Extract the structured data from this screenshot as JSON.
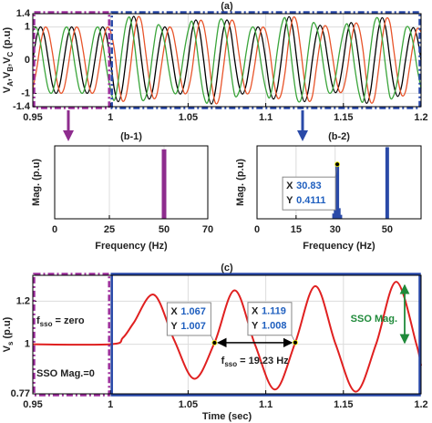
{
  "chart_data": [
    {
      "type": "line",
      "title": "(a)",
      "ylabel": [
        "V",
        "A",
        ",V",
        "B",
        ",V",
        "C",
        " (p.u)"
      ],
      "x": [
        0.95,
        0.9525,
        0.955,
        0.9575,
        0.96,
        0.9625,
        0.965,
        0.9675,
        0.97,
        0.9725,
        0.975,
        0.9775,
        0.98,
        0.9825,
        0.985,
        0.9875,
        0.99,
        0.9925,
        0.995,
        0.9975,
        1,
        1.0025,
        1.005,
        1.0075,
        1.01,
        1.0125,
        1.015,
        1.0175,
        1.02,
        1.0225,
        1.025,
        1.0275,
        1.03,
        1.0325,
        1.035,
        1.0375,
        1.04,
        1.0425,
        1.045,
        1.0475,
        1.05,
        1.0525,
        1.055,
        1.0575,
        1.06,
        1.0625,
        1.065,
        1.0675,
        1.07,
        1.0725,
        1.075,
        1.0775,
        1.08,
        1.0825,
        1.085,
        1.0875,
        1.09,
        1.0925,
        1.095,
        1.0975,
        1.1,
        1.1025,
        1.105,
        1.1075,
        1.11,
        1.1125,
        1.115,
        1.1175,
        1.12,
        1.1225,
        1.125,
        1.1275,
        1.13,
        1.1325,
        1.135,
        1.1375,
        1.14,
        1.1425,
        1.145,
        1.1475,
        1.15,
        1.1525,
        1.155,
        1.1575,
        1.16,
        1.1625,
        1.165,
        1.1675,
        1.17,
        1.1725,
        1.175,
        1.1775,
        1.18,
        1.1825,
        1.185,
        1.1875,
        1.19,
        1.1925,
        1.195,
        1.1975,
        1.2
      ],
      "series": [
        {
          "color": "#000000",
          "values": [
            0,
            0.71,
            1,
            0.71,
            0,
            -0.71,
            -1,
            -0.71,
            0,
            0.71,
            1,
            0.71,
            0,
            -0.71,
            -1,
            -0.71,
            0,
            0.71,
            1,
            0.71,
            0,
            -0.88,
            -1.25,
            -0.88,
            0,
            0.93,
            1.32,
            0.93,
            0,
            -0.83,
            -1.17,
            -0.83,
            0,
            0.71,
            1,
            0.71,
            0,
            -0.72,
            -1.02,
            -0.72,
            0,
            0.86,
            1.21,
            0.86,
            0,
            -0.93,
            -1.32,
            -0.93,
            0,
            0.86,
            1.21,
            0.86,
            0,
            -0.72,
            -1.02,
            -0.72,
            0,
            0.71,
            1,
            0.71,
            0,
            -0.83,
            -1.17,
            -0.83,
            0,
            0.93,
            1.31,
            0.93,
            0,
            -0.88,
            -1.25,
            -0.88,
            0,
            0.74,
            1.05,
            0.74,
            0,
            -0.69,
            -0.98,
            -0.69,
            0,
            0.8,
            1.13,
            0.8,
            0,
            -0.92,
            -1.3,
            -0.92,
            0,
            0.9,
            1.28,
            0.9,
            0,
            -0.77,
            -1.09,
            -0.77,
            0,
            0.69,
            0.98,
            0.69,
            0
          ]
        },
        {
          "color": "#e8542a",
          "values": [
            -0.87,
            -0.26,
            0.5,
            0.97,
            0.87,
            0.26,
            -0.5,
            -0.97,
            -0.87,
            -0.26,
            0.5,
            0.97,
            0.87,
            0.26,
            -0.5,
            -0.97,
            -0.87,
            -0.26,
            0.5,
            0.97,
            0.87,
            0.32,
            -0.63,
            -1.21,
            -1.08,
            -0.34,
            0.66,
            1.28,
            1.14,
            0.3,
            -0.59,
            -1.13,
            -1.01,
            -0.26,
            0.5,
            0.97,
            0.87,
            0.26,
            -0.51,
            -0.99,
            -0.88,
            -0.31,
            0.61,
            1.17,
            1.05,
            0.34,
            -0.66,
            -1.28,
            -1.14,
            -0.31,
            0.61,
            1.17,
            1.05,
            0.26,
            -0.51,
            -0.99,
            -0.88,
            -0.26,
            0.5,
            0.97,
            0.87,
            0.3,
            -0.59,
            -1.13,
            -1.01,
            -0.34,
            0.66,
            1.27,
            1.13,
            0.32,
            -0.63,
            -1.21,
            -1.08,
            -0.27,
            0.53,
            1.01,
            0.91,
            0.25,
            -0.49,
            -0.95,
            -0.85,
            -0.29,
            0.57,
            1.09,
            0.98,
            0.34,
            -0.65,
            -1.26,
            -1.13,
            -0.33,
            0.64,
            1.24,
            1.11,
            0.28,
            -0.55,
            -1.05,
            -0.94,
            -0.25,
            0.49,
            0.95,
            0.85
          ]
        },
        {
          "color": "#3aa53a",
          "values": [
            0.87,
            0.97,
            0.5,
            -0.26,
            -0.87,
            -0.97,
            -0.5,
            0.26,
            0.87,
            0.97,
            0.5,
            -0.26,
            -0.87,
            -0.97,
            -0.5,
            0.26,
            0.87,
            0.97,
            0.5,
            -0.26,
            -0.87,
            -1.21,
            -0.63,
            0.32,
            1.08,
            1.28,
            0.66,
            -0.34,
            -1.14,
            -1.13,
            -0.59,
            0.3,
            1.01,
            0.97,
            0.5,
            -0.26,
            -0.87,
            -0.99,
            -0.51,
            0.26,
            0.88,
            1.17,
            0.61,
            -0.31,
            -1.05,
            -1.28,
            -0.66,
            0.34,
            1.14,
            1.17,
            0.61,
            -0.31,
            -1.05,
            -0.99,
            -0.51,
            0.26,
            0.88,
            0.97,
            0.5,
            -0.26,
            -0.87,
            -1.13,
            -0.59,
            0.3,
            1.01,
            1.27,
            0.66,
            -0.34,
            -1.13,
            -1.21,
            -0.63,
            0.32,
            1.08,
            1.01,
            0.53,
            -0.27,
            -0.91,
            -0.95,
            -0.49,
            0.25,
            0.85,
            1.09,
            0.57,
            -0.29,
            -0.98,
            -1.26,
            -0.65,
            0.34,
            1.13,
            1.24,
            0.64,
            -0.33,
            -1.11,
            -1.05,
            -0.55,
            0.28,
            0.94,
            0.95,
            0.49,
            -0.25,
            -0.85
          ]
        }
      ],
      "xlim": [
        0.95,
        1.2
      ],
      "xticks": [
        0.95,
        1,
        1.05,
        1.1,
        1.15,
        1.2
      ],
      "ylim": [
        -1.4,
        1.4
      ],
      "yticks": [
        -1.4,
        -1,
        0,
        1,
        1.4
      ],
      "grid": true,
      "regions": [
        {
          "x": [
            0.95,
            1
          ],
          "color": "#9b2d9b",
          "style": "dashed"
        },
        {
          "x": [
            1,
            1.2
          ],
          "color": "#2747a8",
          "style": "dashed"
        }
      ]
    },
    {
      "type": "bar",
      "title": "(b-1)",
      "xlabel": "Frequency (Hz)",
      "ylabel": "Mag. (p.u)",
      "x": [
        50
      ],
      "values": [
        1
      ],
      "color": "#8e2c8e",
      "xlim": [
        0,
        70
      ],
      "xticks": [
        0,
        25,
        50,
        70
      ],
      "ylim": [
        0,
        1.05
      ],
      "grid": true
    },
    {
      "type": "bar",
      "title": "(b-2)",
      "xlabel": "Frequency (Hz)",
      "ylabel": "Mag. (p.u)",
      "x": [
        29.6,
        30.2,
        30.83,
        31.4,
        32,
        50
      ],
      "values": [
        0.04,
        0.1,
        0.4111,
        0.08,
        0.03,
        0.54
      ],
      "color": "#2a4aa8",
      "xlim": [
        0,
        63
      ],
      "xticks": [
        0,
        15,
        30,
        50
      ],
      "ylim": [
        0,
        0.55
      ],
      "grid": true,
      "datatip_labels": [
        "X",
        "Y"
      ],
      "datatips": [
        {
          "x": 30.83,
          "y": 0.4111
        }
      ]
    },
    {
      "type": "line",
      "title": "(c)",
      "xlabel": "Time (sec)",
      "ylabel": [
        "V",
        "s",
        " (p.u)"
      ],
      "x": [
        0.95,
        1,
        1.008,
        1.015,
        1.028,
        1.041,
        1.054,
        1.067,
        1.08,
        1.093,
        1.106,
        1.119,
        1.132,
        1.145,
        1.158,
        1.171,
        1.184,
        1.197,
        1.2
      ],
      "series": [
        {
          "color": "#e02020",
          "values": [
            1,
            1,
            1.03,
            1.1,
            1.23,
            1.02,
            0.84,
            1.007,
            1.25,
            1.0,
            0.79,
            1.008,
            1.27,
            1.0,
            0.78,
            1.0,
            1.29,
            1.0,
            0.9
          ]
        }
      ],
      "xlim": [
        0.95,
        1.2
      ],
      "xticks": [
        0.95,
        1,
        1.05,
        1.1,
        1.15,
        1.2
      ],
      "ylim": [
        0.77,
        1.32
      ],
      "yticks": [
        0.77,
        1,
        1.2
      ],
      "grid": true,
      "regions": [
        {
          "x": [
            0.95,
            1
          ],
          "color": "#9b2d9b",
          "style": "dashed"
        },
        {
          "x": [
            1,
            1.2
          ],
          "color": "#2747a8",
          "style": "solid"
        }
      ],
      "datatip_labels": [
        "X",
        "Y"
      ],
      "datatips": [
        {
          "x": 1.067,
          "y": 1.007
        },
        {
          "x": 1.119,
          "y": 1.008
        }
      ],
      "annotations": {
        "f_zero": [
          "f",
          "sso",
          " = zero"
        ],
        "mag_zero": "SSO Mag.=0",
        "f_sso": [
          "f",
          "sso",
          " = 19.23 Hz"
        ],
        "mag": "SSO Mag."
      }
    }
  ]
}
